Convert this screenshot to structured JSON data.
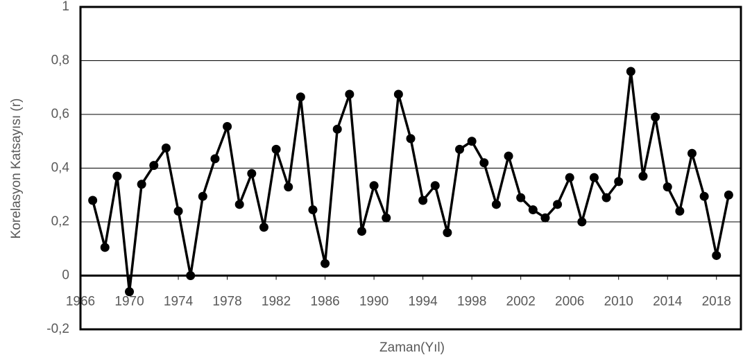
{
  "chart_data": {
    "type": "line",
    "ylabel": "Korelasyon Katsayısı (r)",
    "xlabel": "Zaman(Yıl)",
    "x": [
      1967,
      1968,
      1969,
      1970,
      1971,
      1972,
      1973,
      1974,
      1975,
      1976,
      1977,
      1978,
      1979,
      1980,
      1981,
      1982,
      1983,
      1984,
      1985,
      1986,
      1987,
      1988,
      1989,
      1990,
      1991,
      1992,
      1993,
      1994,
      1995,
      1996,
      1997,
      1998,
      1999,
      2000,
      2001,
      2002,
      2003,
      2004,
      2005,
      2006,
      2007,
      2008,
      2009,
      2010,
      2011,
      2012,
      2013,
      2014,
      2015,
      2016,
      2017,
      2018,
      2019
    ],
    "values": [
      0.28,
      0.105,
      0.37,
      -0.06,
      0.34,
      0.41,
      0.475,
      0.24,
      0.0,
      0.295,
      0.435,
      0.555,
      0.265,
      0.38,
      0.18,
      0.47,
      0.33,
      0.665,
      0.245,
      0.045,
      0.545,
      0.675,
      0.165,
      0.335,
      0.215,
      0.675,
      0.51,
      0.28,
      0.335,
      0.16,
      0.47,
      0.5,
      0.42,
      0.265,
      0.445,
      0.29,
      0.245,
      0.215,
      0.265,
      0.365,
      0.2,
      0.365,
      0.29,
      0.35,
      0.76,
      0.37,
      0.59,
      0.33,
      0.24,
      0.455,
      0.295,
      0.075,
      0.3
    ],
    "color": "#000000",
    "xlim": [
      1966,
      2020
    ],
    "ylim": [
      -0.2,
      1
    ],
    "xticks": [
      1966,
      1970,
      1974,
      1978,
      1982,
      1986,
      1990,
      1994,
      1998,
      2002,
      2006,
      2010,
      2014,
      2018
    ],
    "yticks": [
      {
        "value": -0.2,
        "label": "-0,2"
      },
      0,
      {
        "value": 0.2,
        "label": "0,2"
      },
      {
        "value": 0.4,
        "label": "0,4"
      },
      {
        "value": 0.6,
        "label": "0,6"
      },
      {
        "value": 0.8,
        "label": "0,8"
      },
      1
    ],
    "grid": true
  }
}
